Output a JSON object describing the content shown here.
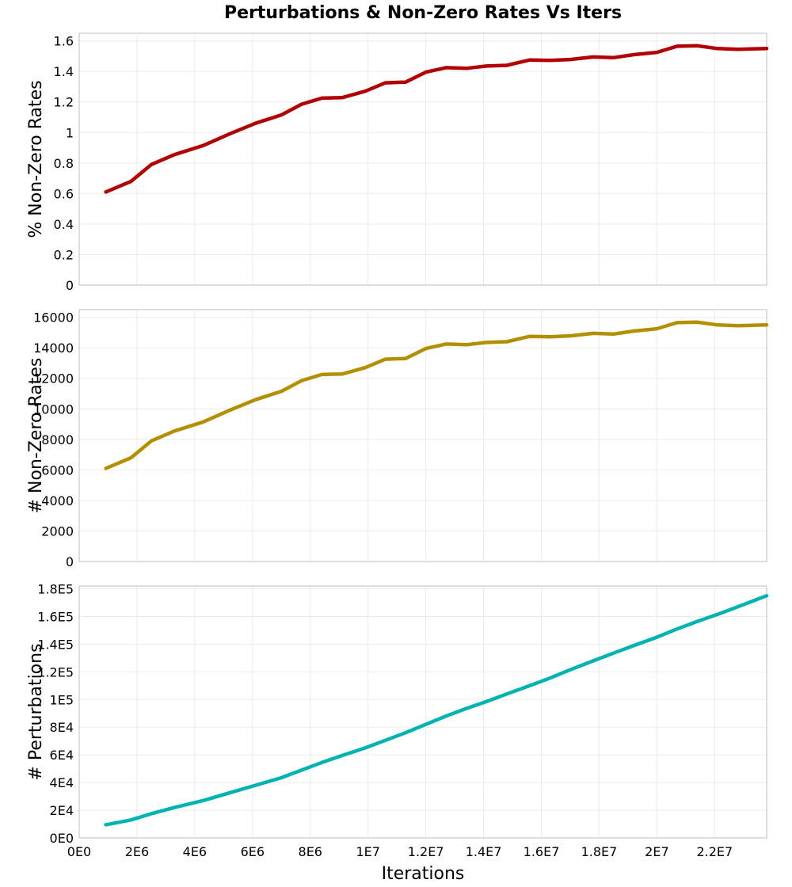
{
  "chart_data": {
    "type": "line",
    "title": "Perturbations & Non-Zero Rates Vs Iters",
    "xlabel": "Iterations",
    "xlim": [
      0,
      23800000
    ],
    "x_ticks": [
      {
        "v": 0,
        "label": "0E0"
      },
      {
        "v": 2000000,
        "label": "2E6"
      },
      {
        "v": 4000000,
        "label": "4E6"
      },
      {
        "v": 6000000,
        "label": "6E6"
      },
      {
        "v": 8000000,
        "label": "8E6"
      },
      {
        "v": 10000000,
        "label": "1E7"
      },
      {
        "v": 12000000,
        "label": "1.2E7"
      },
      {
        "v": 14000000,
        "label": "1.4E7"
      },
      {
        "v": 16000000,
        "label": "1.6E7"
      },
      {
        "v": 18000000,
        "label": "1.8E7"
      },
      {
        "v": 20000000,
        "label": "2E7"
      },
      {
        "v": 22000000,
        "label": "2.2E7"
      }
    ],
    "x": [
      920000,
      1800000,
      2500000,
      3300000,
      4300000,
      5200000,
      6100000,
      7000000,
      7700000,
      8400000,
      9100000,
      9900000,
      10600000,
      11300000,
      12000000,
      12700000,
      13400000,
      14100000,
      14800000,
      15600000,
      16300000,
      17000000,
      17800000,
      18500000,
      19200000,
      20000000,
      20700000,
      21400000,
      22100000,
      22800000,
      23800000
    ],
    "panels": [
      {
        "ylabel": "% Non-Zero Rates",
        "color": "#b30000",
        "ylim": [
          0,
          1.65
        ],
        "y_ticks": [
          {
            "v": 0,
            "label": "0"
          },
          {
            "v": 0.2,
            "label": "0.2"
          },
          {
            "v": 0.4,
            "label": "0.4"
          },
          {
            "v": 0.6,
            "label": "0.6"
          },
          {
            "v": 0.8,
            "label": "0.8"
          },
          {
            "v": 1.0,
            "label": "1"
          },
          {
            "v": 1.2,
            "label": "1.2"
          },
          {
            "v": 1.4,
            "label": "1.4"
          },
          {
            "v": 1.6,
            "label": "1.6"
          }
        ],
        "values": [
          0.61,
          0.68,
          0.79,
          0.855,
          0.915,
          0.99,
          1.06,
          1.115,
          1.185,
          1.225,
          1.228,
          1.27,
          1.325,
          1.33,
          1.395,
          1.425,
          1.42,
          1.435,
          1.44,
          1.475,
          1.472,
          1.478,
          1.495,
          1.49,
          1.51,
          1.525,
          1.565,
          1.568,
          1.55,
          1.545,
          1.55
        ]
      },
      {
        "ylabel": "# Non-Zero Rates",
        "color": "#b38f00",
        "ylim": [
          0,
          16500
        ],
        "y_ticks": [
          {
            "v": 0,
            "label": "0"
          },
          {
            "v": 2000,
            "label": "2000"
          },
          {
            "v": 4000,
            "label": "4000"
          },
          {
            "v": 6000,
            "label": "6000"
          },
          {
            "v": 8000,
            "label": "8000"
          },
          {
            "v": 10000,
            "label": "10000"
          },
          {
            "v": 12000,
            "label": "12000"
          },
          {
            "v": 14000,
            "label": "14000"
          },
          {
            "v": 16000,
            "label": "16000"
          }
        ],
        "values": [
          6100,
          6800,
          7900,
          8550,
          9150,
          9900,
          10600,
          11150,
          11850,
          12250,
          12280,
          12700,
          13250,
          13300,
          13950,
          14250,
          14200,
          14350,
          14400,
          14750,
          14720,
          14780,
          14950,
          14900,
          15100,
          15250,
          15650,
          15680,
          15500,
          15450,
          15500
        ]
      },
      {
        "ylabel": "# Perturbations",
        "color": "#00b3b3",
        "ylim": [
          0,
          182000
        ],
        "y_ticks": [
          {
            "v": 0,
            "label": "0E0"
          },
          {
            "v": 20000,
            "label": "2E4"
          },
          {
            "v": 40000,
            "label": "4E4"
          },
          {
            "v": 60000,
            "label": "6E4"
          },
          {
            "v": 80000,
            "label": "8E4"
          },
          {
            "v": 100000,
            "label": "1E5"
          },
          {
            "v": 120000,
            "label": "1.2E5"
          },
          {
            "v": 140000,
            "label": "1.4E5"
          },
          {
            "v": 160000,
            "label": "1.6E5"
          },
          {
            "v": 180000,
            "label": "1.8E5"
          }
        ],
        "values": [
          9500,
          13000,
          17500,
          22000,
          27000,
          32500,
          38000,
          43500,
          49000,
          54500,
          59500,
          65000,
          70500,
          76000,
          82000,
          88000,
          93500,
          98500,
          104000,
          110000,
          115500,
          121500,
          128000,
          133500,
          139000,
          145000,
          151000,
          156500,
          161500,
          167000,
          175000
        ]
      }
    ]
  }
}
